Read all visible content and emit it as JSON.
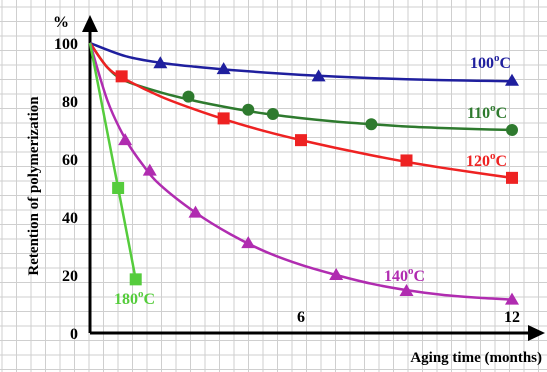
{
  "chart_data": {
    "type": "line",
    "ylabel": "Retention of polymerization",
    "xlabel": "Aging time (months)",
    "y_unit": "%",
    "xlim": [
      0,
      12.5
    ],
    "ylim": [
      0,
      105
    ],
    "x_ticks": [
      6,
      12
    ],
    "y_ticks": [
      0,
      20,
      40,
      60,
      80,
      100
    ],
    "grid": true,
    "series": [
      {
        "name": "100°C",
        "name_main": "100",
        "name_sup": "o",
        "name_end": "C",
        "color": "#1f1f9e",
        "marker": "triangle",
        "points": [
          [
            0,
            100
          ],
          [
            2,
            93
          ],
          [
            3.8,
            91
          ],
          [
            6.5,
            88.5
          ],
          [
            12,
            87
          ]
        ],
        "curve": [
          [
            0,
            100
          ],
          [
            1,
            95.5
          ],
          [
            2,
            93.2
          ],
          [
            3,
            91.8
          ],
          [
            4,
            90.7
          ],
          [
            5,
            89.8
          ],
          [
            6,
            89
          ],
          [
            7,
            88.4
          ],
          [
            8,
            87.9
          ],
          [
            9,
            87.5
          ],
          [
            10,
            87.2
          ],
          [
            11,
            87
          ],
          [
            12,
            86.8
          ]
        ]
      },
      {
        "name": "110°C",
        "name_main": "110",
        "name_sup": "o",
        "name_end": "C",
        "color": "#2e7a2e",
        "marker": "circle",
        "points": [
          [
            0,
            100
          ],
          [
            2.8,
            81.5
          ],
          [
            4.5,
            77
          ],
          [
            5.2,
            75.5
          ],
          [
            8,
            72
          ],
          [
            12,
            70
          ]
        ],
        "curve": [
          [
            0,
            100
          ],
          [
            0.5,
            91.5
          ],
          [
            1,
            87
          ],
          [
            2,
            83
          ],
          [
            3,
            80
          ],
          [
            4,
            77.6
          ],
          [
            5,
            75.6
          ],
          [
            6,
            74.1
          ],
          [
            7,
            72.9
          ],
          [
            8,
            72
          ],
          [
            9,
            71.2
          ],
          [
            10,
            70.7
          ],
          [
            11,
            70.3
          ],
          [
            12,
            70
          ]
        ]
      },
      {
        "name": "120°C",
        "name_main": "120",
        "name_sup": "o",
        "name_end": "C",
        "color": "#ee2222",
        "marker": "square",
        "points": [
          [
            0,
            100
          ],
          [
            0.9,
            88.5
          ],
          [
            3.8,
            74
          ],
          [
            6,
            66.5
          ],
          [
            9,
            59.5
          ],
          [
            12,
            53.5
          ]
        ],
        "curve": [
          [
            0,
            100
          ],
          [
            0.5,
            91.5
          ],
          [
            1,
            87.5
          ],
          [
            2,
            81.6
          ],
          [
            3,
            77
          ],
          [
            4,
            73
          ],
          [
            5,
            69.5
          ],
          [
            6,
            66.5
          ],
          [
            7,
            63.8
          ],
          [
            8,
            61.3
          ],
          [
            9,
            59
          ],
          [
            10,
            57
          ],
          [
            11,
            55.2
          ],
          [
            12,
            53.5
          ]
        ]
      },
      {
        "name": "140°C",
        "name_main": "140",
        "name_sup": "o",
        "name_end": "C",
        "color": "#b02cb0",
        "marker": "triangle",
        "points": [
          [
            0,
            100
          ],
          [
            1,
            66.5
          ],
          [
            1.7,
            56
          ],
          [
            3,
            41.5
          ],
          [
            4.5,
            31
          ],
          [
            7,
            20
          ],
          [
            9,
            14.5
          ],
          [
            12,
            11.5
          ]
        ],
        "curve": [
          [
            0,
            100
          ],
          [
            0.5,
            80
          ],
          [
            1,
            67
          ],
          [
            1.5,
            58
          ],
          [
            2,
            51
          ],
          [
            3,
            41.5
          ],
          [
            4,
            34
          ],
          [
            5,
            28
          ],
          [
            6,
            23.5
          ],
          [
            7,
            20
          ],
          [
            8,
            17
          ],
          [
            9,
            14.8
          ],
          [
            10,
            13.2
          ],
          [
            11,
            12.2
          ],
          [
            12,
            11.5
          ]
        ]
      },
      {
        "name": "180°C",
        "name_main": "180",
        "name_sup": "o",
        "name_end": "C",
        "color": "#55cc3c",
        "marker": "square",
        "points": [
          [
            0,
            100
          ],
          [
            0.8,
            50
          ],
          [
            1.3,
            18.5
          ]
        ],
        "curve": [
          [
            0,
            100
          ],
          [
            0.8,
            50
          ],
          [
            1.3,
            18.5
          ]
        ]
      }
    ]
  }
}
